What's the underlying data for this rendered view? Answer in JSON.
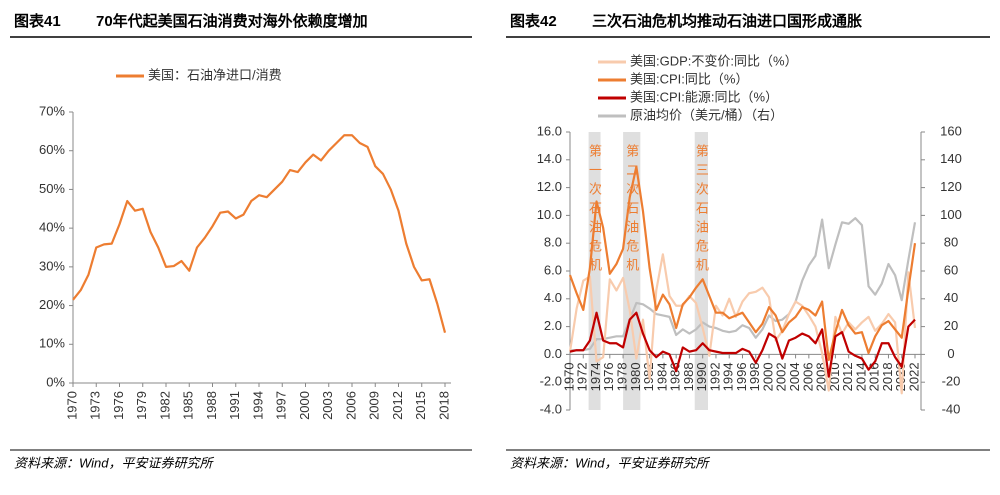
{
  "chart_data": [
    {
      "type": "line",
      "label": "图表41",
      "title": "70年代起美国石油消费对海外依赖度增加",
      "source": "资料来源：Wind，平安证券研究所",
      "x": [
        1970,
        1971,
        1972,
        1973,
        1974,
        1975,
        1976,
        1977,
        1978,
        1979,
        1980,
        1981,
        1982,
        1983,
        1984,
        1985,
        1986,
        1987,
        1988,
        1989,
        1990,
        1991,
        1992,
        1993,
        1994,
        1995,
        1996,
        1997,
        1998,
        1999,
        2000,
        2001,
        2002,
        2003,
        2004,
        2005,
        2006,
        2007,
        2008,
        2009,
        2010,
        2011,
        2012,
        2013,
        2014,
        2015,
        2016,
        2017,
        2018
      ],
      "series": [
        {
          "name": "美国：石油净进口/消费",
          "color": "#ED7D31",
          "values": [
            21.5,
            24,
            28,
            35,
            35.8,
            36,
            41,
            47,
            44.5,
            45,
            39,
            35,
            30,
            30.2,
            31.5,
            29,
            35,
            37.5,
            40.5,
            44,
            44.3,
            42.5,
            43.5,
            47,
            48.5,
            48,
            50,
            52,
            55,
            54.5,
            57,
            59,
            57.5,
            60,
            62,
            64,
            64,
            62,
            61,
            56,
            54,
            50,
            44.5,
            36,
            30,
            26.5,
            26.8,
            20.5,
            13
          ]
        }
      ],
      "xlim": [
        1970,
        2018
      ],
      "xticks": [
        1970,
        1973,
        1976,
        1979,
        1982,
        1985,
        1988,
        1991,
        1994,
        1997,
        2000,
        2003,
        2006,
        2009,
        2012,
        2015,
        2018
      ],
      "ylim": [
        0,
        70
      ],
      "yticks": [
        {
          "value": 0,
          "label": "0%"
        },
        {
          "value": 10,
          "label": "10%"
        },
        {
          "value": 20,
          "label": "20%"
        },
        {
          "value": 30,
          "label": "30%"
        },
        {
          "value": 40,
          "label": "40%"
        },
        {
          "value": 50,
          "label": "50%"
        },
        {
          "value": 60,
          "label": "60%"
        },
        {
          "value": 70,
          "label": "70%"
        }
      ],
      "legend": "top"
    },
    {
      "type": "line",
      "label": "图表42",
      "title": "三次石油危机均推动石油进口国形成通胀",
      "source": "资料来源：Wind，平安证券研究所",
      "x": [
        1970,
        1971,
        1972,
        1973,
        1974,
        1975,
        1976,
        1977,
        1978,
        1979,
        1980,
        1981,
        1982,
        1983,
        1984,
        1985,
        1986,
        1987,
        1988,
        1989,
        1990,
        1991,
        1992,
        1993,
        1994,
        1995,
        1996,
        1997,
        1998,
        1999,
        2000,
        2001,
        2002,
        2003,
        2004,
        2005,
        2006,
        2007,
        2008,
        2009,
        2010,
        2011,
        2012,
        2013,
        2014,
        2015,
        2016,
        2017,
        2018,
        2019,
        2020,
        2021,
        2022
      ],
      "series": [
        {
          "name": "美国:GDP:不变价:同比（%）",
          "color": "#F8CBAD",
          "values": [
            0.2,
            3.3,
            5.3,
            5.6,
            -0.5,
            -0.2,
            5.4,
            4.6,
            5.5,
            3.2,
            -0.3,
            2.5,
            -1.8,
            4.6,
            7.2,
            4.2,
            3.5,
            3.5,
            4.2,
            3.7,
            1.9,
            -0.1,
            3.5,
            2.8,
            4.0,
            2.7,
            3.8,
            4.4,
            4.5,
            4.8,
            4.1,
            1.0,
            1.7,
            2.9,
            3.8,
            3.5,
            2.8,
            2.0,
            0.1,
            -2.6,
            2.7,
            1.5,
            2.3,
            1.8,
            2.3,
            2.7,
            1.7,
            2.2,
            2.9,
            2.3,
            -2.8,
            5.9,
            1.9
          ]
        },
        {
          "name": "美国:CPI:同比（%）",
          "color": "#ED7D31",
          "values": [
            5.7,
            4.4,
            3.2,
            6.2,
            11.0,
            9.1,
            5.8,
            6.5,
            7.6,
            11.3,
            13.5,
            10.3,
            6.2,
            3.2,
            4.3,
            3.6,
            1.9,
            3.6,
            4.1,
            4.8,
            5.4,
            4.2,
            3.0,
            3.0,
            2.6,
            2.8,
            3.0,
            2.3,
            1.6,
            2.2,
            3.4,
            2.8,
            1.6,
            2.3,
            2.7,
            3.4,
            3.2,
            2.8,
            3.8,
            -0.4,
            1.6,
            3.2,
            2.1,
            1.5,
            1.6,
            0.1,
            1.3,
            2.1,
            2.4,
            1.8,
            1.2,
            4.7,
            8.0
          ]
        },
        {
          "name": "美国:CPI:能源:同比（%）",
          "color": "#C00000",
          "values": [
            0.2,
            0.3,
            0.3,
            1.0,
            3.0,
            1.0,
            0.8,
            0.8,
            0.5,
            2.5,
            3.0,
            1.5,
            0.3,
            -0.2,
            0.2,
            0.0,
            -1.2,
            0.5,
            0.2,
            0.3,
            0.8,
            0.3,
            0.2,
            0.1,
            0.1,
            0.1,
            0.4,
            0.2,
            -0.6,
            0.3,
            1.5,
            1.2,
            -0.3,
            1.0,
            1.2,
            1.5,
            1.3,
            0.8,
            1.8,
            -1.6,
            1.3,
            1.6,
            0.2,
            -0.1,
            -0.3,
            -1.1,
            -0.5,
            0.8,
            0.8,
            -0.2,
            -0.9,
            2.0,
            2.5
          ]
        },
        {
          "name": "原油均价（美元/桶）（右）",
          "color": "#BFBFBF",
          "axis": "y2",
          "values": [
            3,
            3,
            3,
            4,
            11,
            11,
            12,
            13,
            13,
            25,
            37,
            36,
            33,
            29,
            28,
            27,
            14,
            18,
            15,
            18,
            23,
            20,
            19,
            17,
            16,
            17,
            21,
            19,
            12,
            18,
            28,
            24,
            25,
            29,
            38,
            53,
            64,
            71,
            97,
            62,
            79,
            95,
            94,
            98,
            93,
            49,
            43,
            51,
            65,
            57,
            39,
            68,
            95
          ]
        }
      ],
      "shaded_periods": [
        {
          "start": 1972.8,
          "end": 1974.6,
          "label": "第一次石油危机"
        },
        {
          "start": 1978,
          "end": 1980.6,
          "label": "第二次石油危机"
        },
        {
          "start": 1988.8,
          "end": 1990.8,
          "label": "第三次石油危机"
        }
      ],
      "xlim": [
        1970,
        2022
      ],
      "xticks": [
        1970,
        1972,
        1974,
        1976,
        1978,
        1980,
        1982,
        1984,
        1986,
        1988,
        1990,
        1992,
        1994,
        1996,
        1998,
        2000,
        2002,
        2004,
        2006,
        2008,
        2010,
        2012,
        2014,
        2016,
        2018,
        2020,
        2022
      ],
      "ylim": [
        -4,
        16
      ],
      "yticks": [
        {
          "value": -4,
          "label": "-4.0"
        },
        {
          "value": -2,
          "label": "-2.0"
        },
        {
          "value": 0,
          "label": "0.0"
        },
        {
          "value": 2,
          "label": "2.0"
        },
        {
          "value": 4,
          "label": "4.0"
        },
        {
          "value": 6,
          "label": "6.0"
        },
        {
          "value": 8,
          "label": "8.0"
        },
        {
          "value": 10,
          "label": "10.0"
        },
        {
          "value": 12,
          "label": "12.0"
        },
        {
          "value": 14,
          "label": "14.0"
        },
        {
          "value": 16,
          "label": "16.0"
        }
      ],
      "y2lim": [
        -40,
        160
      ],
      "y2ticks": [
        -40,
        -20,
        0,
        20,
        40,
        60,
        80,
        100,
        120,
        140,
        160
      ],
      "legend": "top-left"
    }
  ]
}
